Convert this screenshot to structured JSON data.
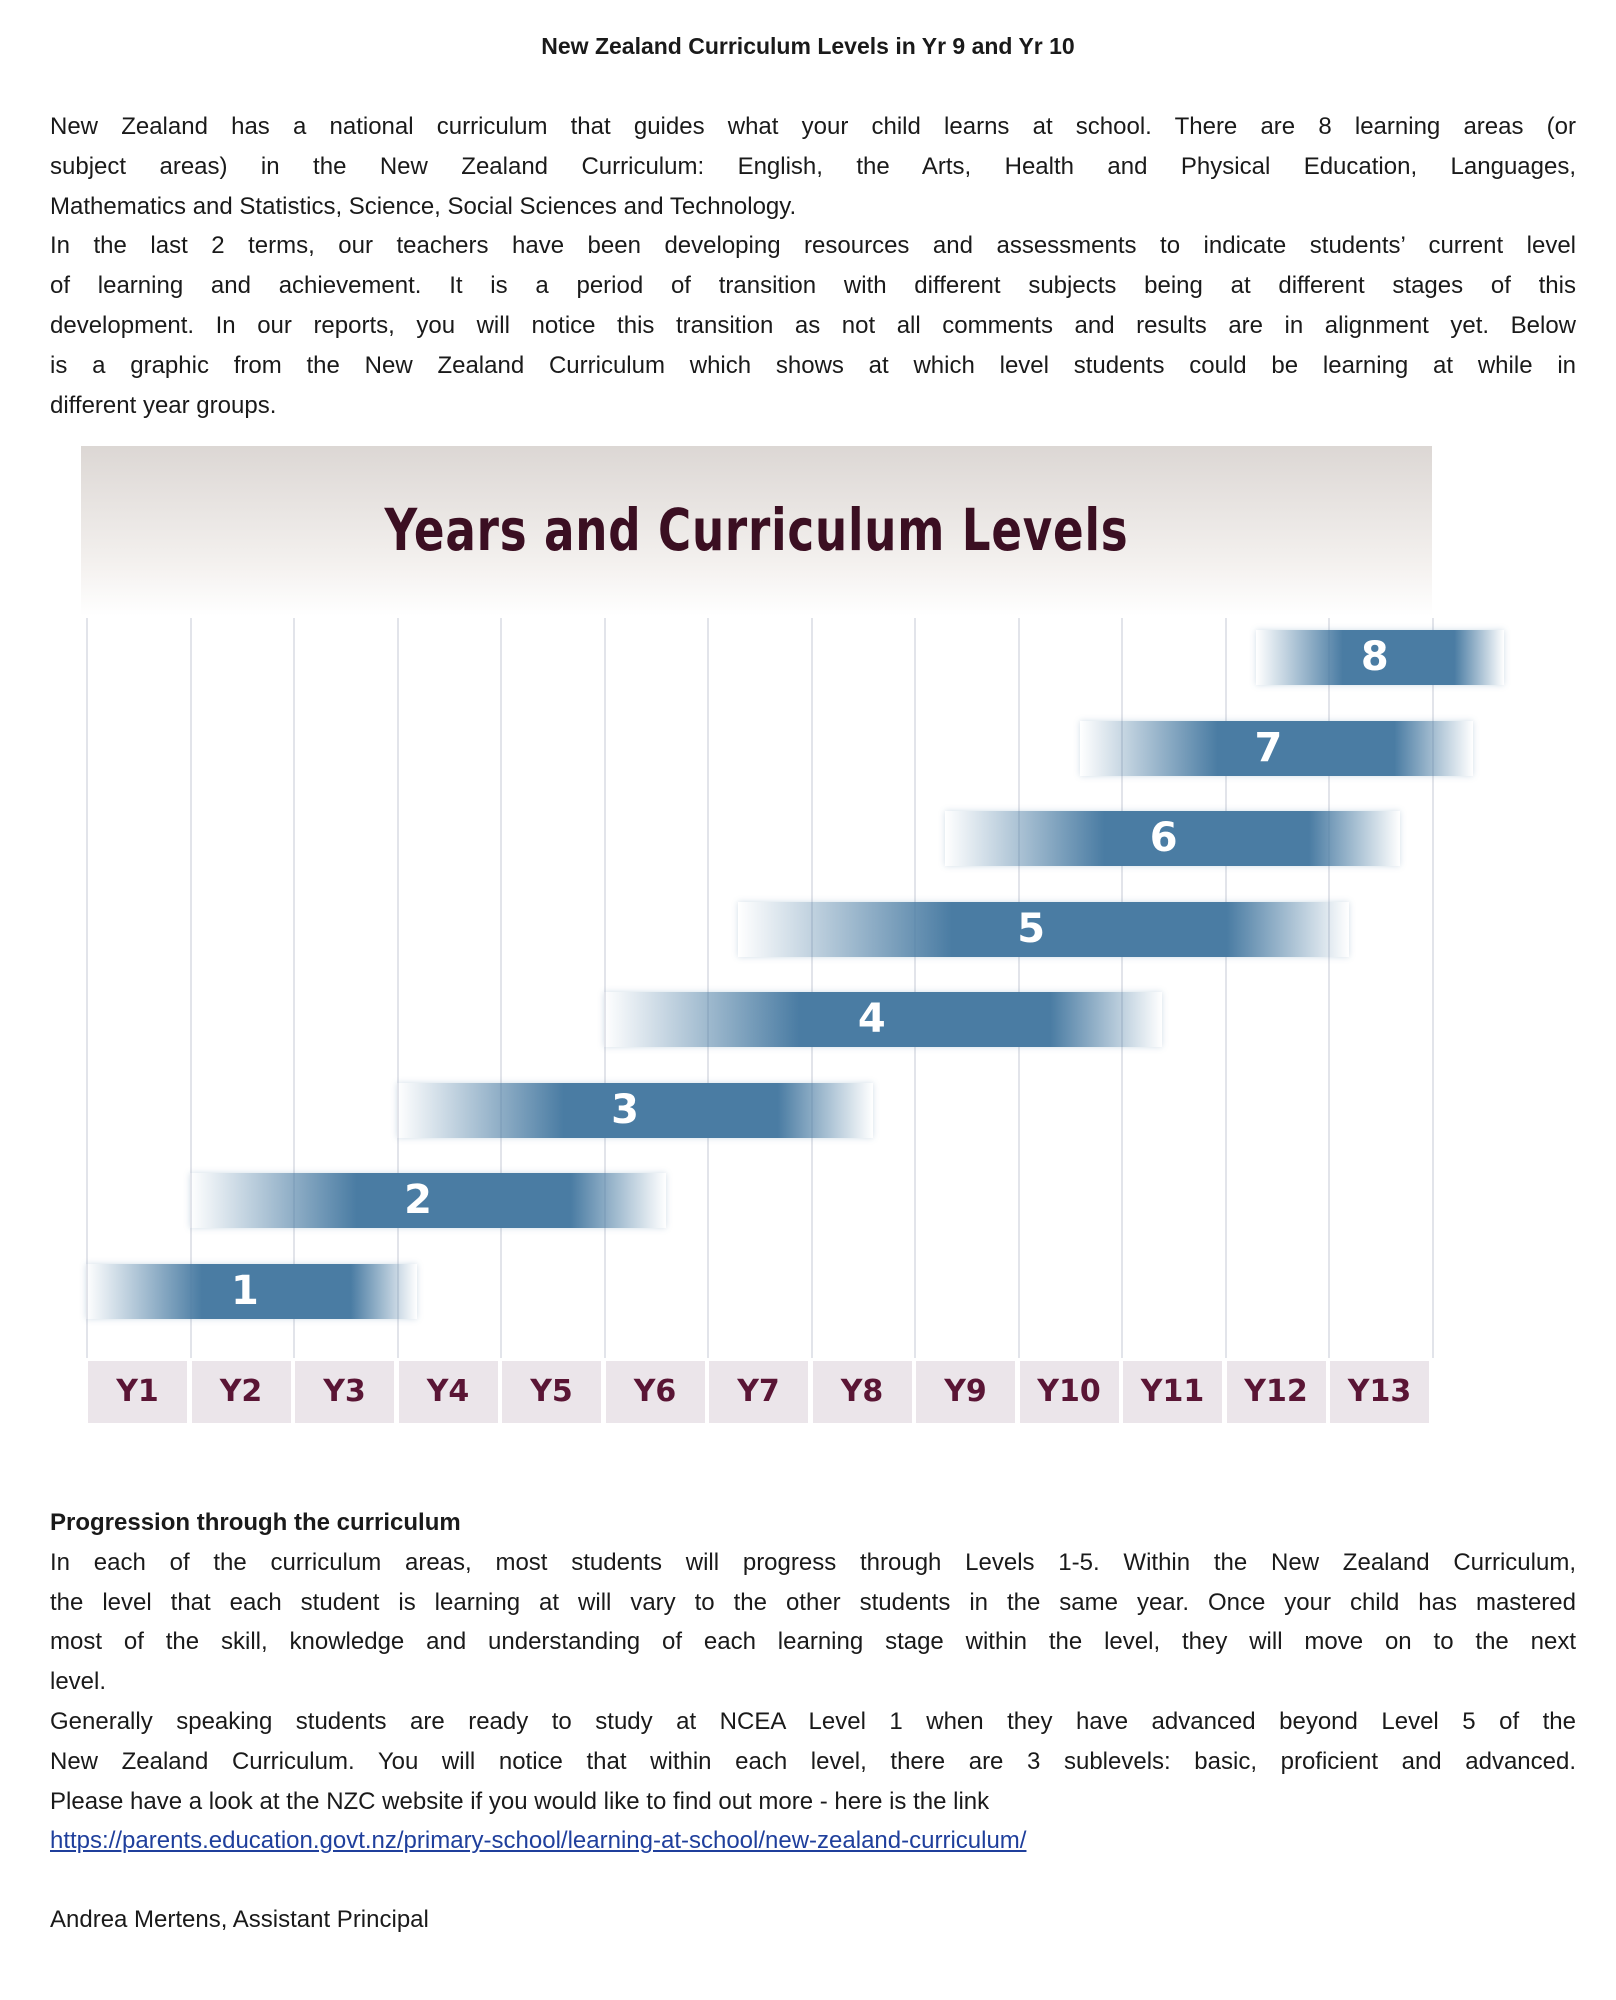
{
  "title": "New Zealand Curriculum Levels in Yr 9 and Yr 10",
  "intro": {
    "paragraphs": [
      [
        "New Zealand has a national curriculum that guides what your child learns at school. There are 8 learning areas (or",
        "subject areas) in the New Zealand Curriculum: English, the Arts, Health and Physical Education, Languages,",
        "Mathematics and Statistics, Science, Social Sciences and Technology."
      ],
      [
        "In the last 2 terms, our teachers have been developing resources and assessments to indicate students’ current level",
        "of learning and achievement. It is a period of transition with different subjects being at different stages of this",
        "development. In our reports, you will notice this transition as not all comments and results are in alignment yet. Below",
        "is a graphic from the New Zealand Curriculum which shows at which level students could be learning at while in",
        "different year groups."
      ]
    ]
  },
  "chart_data": {
    "type": "bar",
    "orientation": "horizontal-range",
    "title": "Years and Curriculum Levels",
    "categories": [
      "Y1",
      "Y2",
      "Y3",
      "Y4",
      "Y5",
      "Y6",
      "Y7",
      "Y8",
      "Y9",
      "Y10",
      "Y11",
      "Y12",
      "Y13"
    ],
    "series": [
      {
        "level": "1",
        "range": [
          0.5,
          3.7
        ]
      },
      {
        "level": "2",
        "range": [
          1.5,
          6.1
        ]
      },
      {
        "level": "3",
        "range": [
          3.5,
          8.1
        ]
      },
      {
        "level": "4",
        "range": [
          5.5,
          10.9
        ]
      },
      {
        "level": "5",
        "range": [
          6.8,
          12.7
        ]
      },
      {
        "level": "6",
        "range": [
          8.8,
          13.2
        ]
      },
      {
        "level": "7",
        "range": [
          10.1,
          13.9
        ]
      },
      {
        "level": "8",
        "range": [
          11.8,
          14.2
        ]
      }
    ],
    "grid": true,
    "colors": {
      "bar": "#4a7ca3",
      "title": "#3b0f22",
      "year_label": "#5a1535",
      "year_bg": "#ebe5ea"
    }
  },
  "progression": {
    "heading": "Progression through the curriculum",
    "paragraphs": [
      [
        "In each of the curriculum areas, most students will progress through Levels 1-5. Within the New Zealand Curriculum,",
        "the level that each student is learning at will vary to the other students in the same year. Once your child has mastered",
        "most of the skill, knowledge and understanding of each learning stage within the level, they will move on to the next",
        "level."
      ],
      [
        "Generally speaking students are ready to study at NCEA Level 1 when they have advanced beyond Level 5 of the",
        "New Zealand Curriculum. You will notice that within each level, there are 3 sublevels: basic, proficient and advanced.",
        "Please have a look at the NZC website if you would like to find out more -  here is the link"
      ]
    ],
    "link": "https://parents.education.govt.nz/primary-school/learning-at-school/new-zealand-curriculum/"
  },
  "signature": "Andrea Mertens, Assistant Principal"
}
